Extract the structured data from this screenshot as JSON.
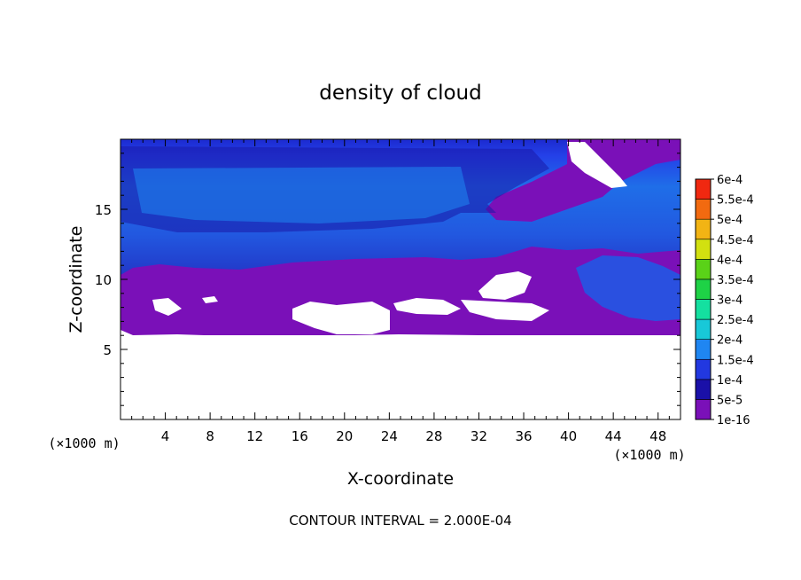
{
  "chart_data": {
    "type": "heatmap",
    "title": "density of cloud",
    "xlabel": "X-coordinate",
    "ylabel": "Z-coordinate",
    "x_unit_label": "(×1000 m)",
    "y_unit_label": "(×1000 m)",
    "xlim": [
      0,
      50
    ],
    "ylim": [
      0,
      20
    ],
    "x_ticks": [
      4,
      8,
      12,
      16,
      20,
      24,
      28,
      32,
      36,
      40,
      44,
      48
    ],
    "y_ticks": [
      5,
      10,
      15
    ],
    "footer": "CONTOUR INTERVAL = 2.000E-04",
    "colorbar": {
      "levels": [
        "1e-16",
        "5e-5",
        "1e-4",
        "1.5e-4",
        "2e-4",
        "2.5e-4",
        "3e-4",
        "3.5e-4",
        "4e-4",
        "4.5e-4",
        "5e-4",
        "5.5e-4",
        "6e-4"
      ],
      "colors": [
        "#7a10b8",
        "#1a10a8",
        "#2238e0",
        "#1f86f2",
        "#18c8d8",
        "#14e0a0",
        "#1ed246",
        "#5ad218",
        "#d2e010",
        "#f2b414",
        "#f26a10",
        "#f02810",
        "#f08c8c"
      ]
    },
    "fields": {
      "cloud_base_km": 6.2,
      "cloud_top_km": 19.7,
      "upper_layer_level": "1e-4",
      "lower_layer_level": "1e-16",
      "max_level_present": "1.5e-4"
    }
  }
}
